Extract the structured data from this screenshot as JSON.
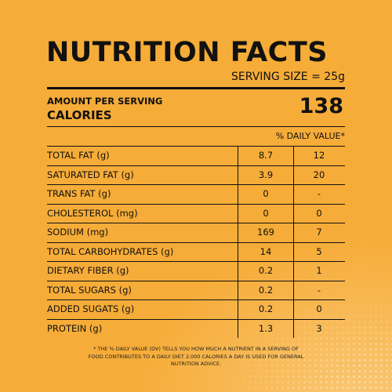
{
  "label": {
    "title": "NUTRITION FACTS",
    "serving_size": "SERVING SIZE = 25g",
    "amount_per_serving": "AMOUNT PER SERVING",
    "calories_label": "CALORIES",
    "calories_value": "138",
    "daily_value_header": "% DAILY VALUE*",
    "nutrients": [
      {
        "name": "TOTAL FAT (g)",
        "amount": "8.7",
        "dv": "12"
      },
      {
        "name": "SATURATED FAT (g)",
        "amount": "3.9",
        "dv": "20"
      },
      {
        "name": "TRANS FAT (g)",
        "amount": "0",
        "dv": "-"
      },
      {
        "name": "CHOLESTEROL (mg)",
        "amount": "0",
        "dv": "0"
      },
      {
        "name": "SODIUM (mg)",
        "amount": "169",
        "dv": "7"
      },
      {
        "name": "TOTAL CARBOHYDRATES (g)",
        "amount": "14",
        "dv": "5"
      },
      {
        "name": "DIETARY FIBER (g)",
        "amount": "0.2",
        "dv": "1"
      },
      {
        "name": "TOTAL SUGARS (g)",
        "amount": "0.2",
        "dv": "-"
      },
      {
        "name": "ADDED SUGATS (g)",
        "amount": "0.2",
        "dv": "0"
      },
      {
        "name": "PROTEIN (g)",
        "amount": "1.3",
        "dv": "3"
      }
    ],
    "footnote": "* THE % DAILY VALUE (DV) TELLS YOU HOW MUCH A NUTRIENT IN A SERVING OF FOOD CONTRIBUTES TO A DAILY DIET 2,000 CALORIES A DAY IS USED FOR GENERAL NUTRITION ADVICE."
  },
  "colors": {
    "background": "#f6ac38",
    "text": "#111111"
  }
}
